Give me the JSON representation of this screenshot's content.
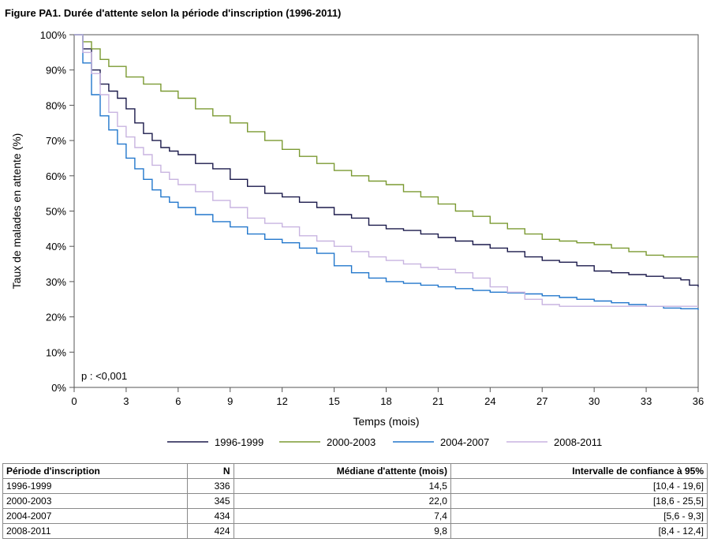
{
  "figure_title": "Figure PA1. Durée d'attente selon la période d'inscription (1996-2011)",
  "chart_data": {
    "type": "line",
    "title": "",
    "xlabel": "Temps (mois)",
    "ylabel": "Taux de malades en attente (%)",
    "xlim": [
      0,
      36
    ],
    "ylim": [
      0,
      100
    ],
    "xticks": [
      0,
      3,
      6,
      9,
      12,
      15,
      18,
      21,
      24,
      27,
      30,
      33,
      36
    ],
    "yticks": [
      0,
      10,
      20,
      30,
      40,
      50,
      60,
      70,
      80,
      90,
      100
    ],
    "ytick_labels": [
      "0%",
      "10%",
      "20%",
      "30%",
      "40%",
      "50%",
      "60%",
      "70%",
      "80%",
      "90%",
      "100%"
    ],
    "grid": false,
    "legend_position": "bottom",
    "annotation": "p : <0,001",
    "series": [
      {
        "name": "1996-1999",
        "color": "#1b1a4b",
        "step": true,
        "x": [
          0,
          0.5,
          1,
          1.5,
          2,
          2.5,
          3,
          3.5,
          4,
          4.5,
          5,
          5.5,
          6,
          7,
          8,
          9,
          10,
          11,
          12,
          13,
          14,
          15,
          16,
          17,
          18,
          19,
          20,
          21,
          22,
          23,
          24,
          25,
          26,
          27,
          28,
          29,
          30,
          31,
          32,
          33,
          34,
          35,
          35.5,
          36
        ],
        "y": [
          100,
          96,
          90,
          86,
          84,
          82,
          79,
          75,
          72,
          70,
          68,
          67,
          66,
          63.5,
          62,
          59,
          57,
          55,
          54,
          52.5,
          51,
          49,
          48,
          46,
          45,
          44.5,
          43.5,
          42.5,
          41.5,
          40.5,
          39.5,
          38.5,
          37,
          36,
          35.5,
          34.5,
          33,
          32.5,
          32,
          31.5,
          31,
          30.5,
          29,
          28.5
        ]
      },
      {
        "name": "2000-2003",
        "color": "#7b9a32",
        "step": true,
        "x": [
          0,
          0.5,
          1,
          1.5,
          2,
          3,
          4,
          5,
          6,
          7,
          8,
          9,
          10,
          11,
          12,
          13,
          14,
          15,
          16,
          17,
          18,
          19,
          20,
          21,
          22,
          23,
          24,
          25,
          26,
          27,
          28,
          29,
          30,
          31,
          32,
          33,
          34,
          35,
          36
        ],
        "y": [
          100,
          98,
          96,
          93,
          91,
          88,
          86,
          84,
          82,
          79,
          77,
          75,
          72.5,
          70,
          67.5,
          65.5,
          63.5,
          61.5,
          60,
          58.5,
          57.5,
          55.5,
          54,
          52,
          50,
          48.5,
          46.5,
          45,
          43.5,
          42,
          41.5,
          41,
          40.5,
          39.5,
          38.5,
          37.5,
          37,
          37,
          37
        ]
      },
      {
        "name": "2004-2007",
        "color": "#2277cc",
        "step": true,
        "x": [
          0,
          0.5,
          1,
          1.5,
          2,
          2.5,
          3,
          3.5,
          4,
          4.5,
          5,
          5.5,
          6,
          7,
          8,
          9,
          10,
          11,
          12,
          13,
          14,
          15,
          16,
          17,
          18,
          19,
          20,
          21,
          22,
          23,
          24,
          25,
          26,
          27,
          28,
          29,
          30,
          31,
          32,
          33,
          34,
          35,
          36
        ],
        "y": [
          100,
          92,
          83,
          77,
          73,
          69,
          65,
          62,
          59,
          56,
          54,
          52.5,
          51,
          49,
          47,
          45.5,
          43.5,
          42,
          41,
          39.5,
          38,
          34.5,
          32.5,
          31,
          30,
          29.5,
          29,
          28.5,
          28,
          27.5,
          27,
          26.8,
          26.5,
          26,
          25.5,
          25,
          24.5,
          24,
          23.5,
          23,
          22.5,
          22.3,
          22
        ]
      },
      {
        "name": "2008-2011",
        "color": "#c8b4e0",
        "step": true,
        "x": [
          0,
          0.5,
          1,
          1.5,
          2,
          2.5,
          3,
          3.5,
          4,
          4.5,
          5,
          5.5,
          6,
          7,
          8,
          9,
          10,
          11,
          12,
          13,
          14,
          15,
          16,
          17,
          18,
          19,
          20,
          21,
          22,
          23,
          24,
          25,
          26,
          27,
          28,
          29,
          30,
          31,
          32,
          33,
          34,
          35,
          36
        ],
        "y": [
          100,
          95,
          89,
          83,
          78,
          74,
          71,
          68,
          66,
          63,
          61,
          59,
          57.5,
          55.5,
          53,
          51,
          48,
          46.5,
          45.5,
          43,
          41.5,
          40,
          38.5,
          37,
          36,
          35,
          34,
          33.5,
          32.5,
          31,
          28.5,
          27,
          25,
          23.5,
          23,
          23,
          23,
          23,
          23,
          23,
          23,
          23,
          23
        ]
      }
    ]
  },
  "table": {
    "headers": [
      "Période d'inscription",
      "N",
      "Médiane d'attente (mois)",
      "Intervalle de confiance à 95%"
    ],
    "rows": [
      [
        "1996-1999",
        "336",
        "14,5",
        "[10,4 - 19,6]"
      ],
      [
        "2000-2003",
        "345",
        "22,0",
        "[18,6 - 25,5]"
      ],
      [
        "2004-2007",
        "434",
        "7,4",
        "[5,6 - 9,3]"
      ],
      [
        "2008-2011",
        "424",
        "9,8",
        "[8,4 - 12,4]"
      ]
    ]
  }
}
